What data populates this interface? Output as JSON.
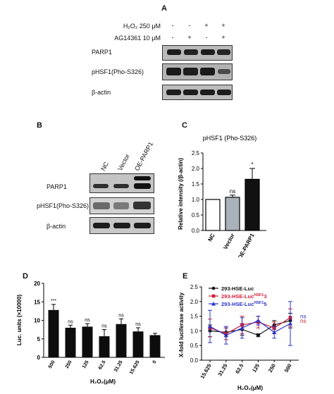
{
  "panelA": {
    "label": "A",
    "cond1": "H₂O₂ 250 μM",
    "cond2": "AG14361 10 μM",
    "row1": [
      "-",
      "-",
      "+",
      "+"
    ],
    "row2": [
      "-",
      "+",
      "-",
      "+"
    ],
    "blots": [
      "PARP1",
      "pHSF1(Pho-S326)",
      "β-actin"
    ]
  },
  "panelB": {
    "label": "B",
    "lanes": [
      "NC",
      "Vector",
      "OE-PARP1"
    ],
    "blots": [
      "PARP1",
      "pHSF1(Pho-S326)",
      "β-actin"
    ]
  },
  "panelC": {
    "label": "C",
    "chart_data": {
      "type": "bar",
      "title": "pHSF1 (Pho-S326)",
      "ylabel": "Relative intensity (/β-actin)",
      "categories": [
        "NC",
        "Vector",
        "OE-PARP1"
      ],
      "values": [
        1.0,
        1.07,
        1.65
      ],
      "errors": [
        0.0,
        0.07,
        0.35
      ],
      "annotations": [
        "",
        "ns",
        "*"
      ],
      "fill": [
        "#ffffff",
        "#a9b2bb",
        "#111111"
      ],
      "ylim": [
        0,
        2.5
      ],
      "yticks": [
        "0.0",
        "0.5",
        "1.0",
        "1.5",
        "2.0",
        "2.5"
      ]
    }
  },
  "panelD": {
    "label": "D",
    "chart_data": {
      "type": "bar",
      "xlabel": "H₂O₂(μM)",
      "ylabel": "Luc. units (×10000)",
      "categories": [
        "500",
        "250",
        "125",
        "62.5",
        "31.25",
        "15.625",
        "0"
      ],
      "values": [
        12.8,
        8.0,
        8.3,
        5.7,
        9.0,
        7.0,
        6.0
      ],
      "errors": [
        1.5,
        0.7,
        0.8,
        1.8,
        1.4,
        1.0,
        0.5
      ],
      "annotations": [
        "***",
        "ns",
        "ns",
        "ns",
        "ns",
        "ns",
        ""
      ],
      "ylim": [
        0,
        20
      ],
      "yticks": [
        "0",
        "5",
        "10",
        "15",
        "20"
      ]
    }
  },
  "panelE": {
    "label": "E",
    "chart_data": {
      "type": "line",
      "xlabel": "H₂O₂(μM)",
      "ylabel": "X-fold luciferase activity",
      "categories": [
        "15.625",
        "31.25",
        "62.5",
        "125",
        "250",
        "500"
      ],
      "ylim": [
        0,
        2.5
      ],
      "yticks": [
        "0.0",
        "0.5",
        "1.0",
        "1.5",
        "2.0",
        "2.5"
      ],
      "series": [
        {
          "name": "293-HSE-Luc",
          "color": "#111111",
          "marker": "circle",
          "values": [
            1.0,
            0.95,
            1.05,
            0.85,
            1.2,
            1.35
          ],
          "errors": [
            0.2,
            0.15,
            0.2,
            0.05,
            0.15,
            0.25
          ]
        },
        {
          "name": "293-HSE-Luc",
          "sup": "HSF1",
          "suffix": "3",
          "color": "#d0203a",
          "marker": "square",
          "values": [
            1.1,
            0.9,
            1.2,
            1.3,
            1.1,
            1.45
          ],
          "errors": [
            0.3,
            0.2,
            0.3,
            0.2,
            0.2,
            0.3
          ]
        },
        {
          "name": "293-HSE-Luc",
          "sup": "HSF1",
          "suffix": "5",
          "color": "#2a33c8",
          "marker": "triangle",
          "values": [
            1.15,
            0.85,
            1.1,
            1.35,
            0.95,
            1.25
          ],
          "errors": [
            0.55,
            0.3,
            0.35,
            0.15,
            0.2,
            0.75
          ]
        }
      ],
      "annotations": [
        "ns",
        "ns"
      ],
      "annotation_colors": [
        "#2a33c8",
        "#d0203a"
      ]
    }
  }
}
